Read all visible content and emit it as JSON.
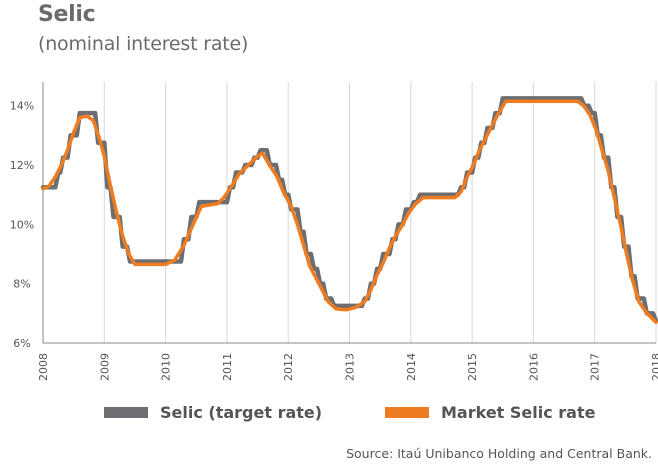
{
  "header": {
    "title": "Selic",
    "subtitle": "(nominal interest rate)"
  },
  "legend": {
    "items": [
      {
        "label": "Selic (target rate)",
        "color": "#6d6e71"
      },
      {
        "label": "Market Selic rate",
        "color": "#f07c22"
      }
    ]
  },
  "footer": {
    "source": "Source: Itaú Unibanco Holding and Central Bank."
  },
  "chart_data": {
    "type": "line",
    "title": "Selic",
    "subtitle": "(nominal interest rate)",
    "xlabel": "",
    "ylabel": "",
    "xlim": [
      2008,
      2018
    ],
    "ylim": [
      6,
      14.8
    ],
    "y_ticks": [
      6,
      8,
      10,
      12,
      14
    ],
    "y_tick_labels": [
      "6%",
      "8%",
      "10%",
      "12%",
      "14%"
    ],
    "x_ticks": [
      2008,
      2009,
      2010,
      2011,
      2012,
      2013,
      2014,
      2015,
      2016,
      2017,
      2018
    ],
    "x_tick_labels": [
      "2008",
      "2009",
      "2010",
      "2011",
      "2012",
      "2013",
      "2014",
      "2015",
      "2016",
      "2017",
      "2018"
    ],
    "grid": "vertical",
    "legend_position": "bottom",
    "series": [
      {
        "name": "Selic (target rate)",
        "color": "#6d6e71",
        "step": true,
        "points": [
          [
            2008.0,
            11.25
          ],
          [
            2008.25,
            11.75
          ],
          [
            2008.33,
            12.25
          ],
          [
            2008.45,
            13.0
          ],
          [
            2008.6,
            13.75
          ],
          [
            2008.9,
            12.75
          ],
          [
            2009.05,
            11.25
          ],
          [
            2009.15,
            10.25
          ],
          [
            2009.3,
            9.25
          ],
          [
            2009.42,
            8.75
          ],
          [
            2010.05,
            8.75
          ],
          [
            2010.3,
            9.5
          ],
          [
            2010.42,
            10.25
          ],
          [
            2010.55,
            10.75
          ],
          [
            2010.85,
            10.75
          ],
          [
            2011.05,
            11.25
          ],
          [
            2011.15,
            11.75
          ],
          [
            2011.3,
            12.0
          ],
          [
            2011.45,
            12.25
          ],
          [
            2011.55,
            12.5
          ],
          [
            2011.7,
            12.0
          ],
          [
            2011.85,
            11.5
          ],
          [
            2011.95,
            11.0
          ],
          [
            2012.05,
            10.5
          ],
          [
            2012.2,
            9.75
          ],
          [
            2012.3,
            9.0
          ],
          [
            2012.42,
            8.5
          ],
          [
            2012.52,
            8.0
          ],
          [
            2012.62,
            7.5
          ],
          [
            2012.75,
            7.25
          ],
          [
            2013.25,
            7.5
          ],
          [
            2013.35,
            8.0
          ],
          [
            2013.45,
            8.5
          ],
          [
            2013.55,
            9.0
          ],
          [
            2013.7,
            9.5
          ],
          [
            2013.8,
            10.0
          ],
          [
            2013.92,
            10.5
          ],
          [
            2014.05,
            10.75
          ],
          [
            2014.15,
            11.0
          ],
          [
            2014.7,
            11.0
          ],
          [
            2014.82,
            11.25
          ],
          [
            2014.92,
            11.75
          ],
          [
            2015.05,
            12.25
          ],
          [
            2015.15,
            12.75
          ],
          [
            2015.25,
            13.25
          ],
          [
            2015.38,
            13.75
          ],
          [
            2015.5,
            14.25
          ],
          [
            2016.75,
            14.25
          ],
          [
            2016.83,
            14.0
          ],
          [
            2016.95,
            13.75
          ],
          [
            2017.05,
            13.0
          ],
          [
            2017.15,
            12.25
          ],
          [
            2017.27,
            11.25
          ],
          [
            2017.37,
            10.25
          ],
          [
            2017.48,
            9.25
          ],
          [
            2017.6,
            8.25
          ],
          [
            2017.7,
            7.5
          ],
          [
            2017.85,
            7.0
          ],
          [
            2018.0,
            6.75
          ]
        ]
      },
      {
        "name": "Market Selic rate",
        "color": "#f07c22",
        "step": false,
        "points": [
          [
            2008.0,
            11.2
          ],
          [
            2008.1,
            11.3
          ],
          [
            2008.2,
            11.6
          ],
          [
            2008.3,
            12.0
          ],
          [
            2008.4,
            12.5
          ],
          [
            2008.5,
            13.1
          ],
          [
            2008.6,
            13.6
          ],
          [
            2008.72,
            13.65
          ],
          [
            2008.82,
            13.5
          ],
          [
            2008.92,
            12.9
          ],
          [
            2009.0,
            12.3
          ],
          [
            2009.1,
            11.3
          ],
          [
            2009.2,
            10.4
          ],
          [
            2009.3,
            9.6
          ],
          [
            2009.4,
            9.0
          ],
          [
            2009.5,
            8.65
          ],
          [
            2009.7,
            8.65
          ],
          [
            2010.0,
            8.65
          ],
          [
            2010.15,
            8.8
          ],
          [
            2010.3,
            9.3
          ],
          [
            2010.45,
            10.0
          ],
          [
            2010.58,
            10.6
          ],
          [
            2010.7,
            10.65
          ],
          [
            2010.85,
            10.7
          ],
          [
            2010.95,
            10.9
          ],
          [
            2011.08,
            11.3
          ],
          [
            2011.2,
            11.7
          ],
          [
            2011.35,
            12.0
          ],
          [
            2011.5,
            12.3
          ],
          [
            2011.58,
            12.4
          ],
          [
            2011.68,
            12.05
          ],
          [
            2011.82,
            11.6
          ],
          [
            2011.92,
            11.1
          ],
          [
            2012.05,
            10.6
          ],
          [
            2012.15,
            10.0
          ],
          [
            2012.25,
            9.3
          ],
          [
            2012.35,
            8.6
          ],
          [
            2012.45,
            8.2
          ],
          [
            2012.55,
            7.8
          ],
          [
            2012.65,
            7.4
          ],
          [
            2012.78,
            7.15
          ],
          [
            2012.95,
            7.12
          ],
          [
            2013.1,
            7.2
          ],
          [
            2013.25,
            7.4
          ],
          [
            2013.35,
            7.8
          ],
          [
            2013.45,
            8.3
          ],
          [
            2013.55,
            8.7
          ],
          [
            2013.65,
            9.2
          ],
          [
            2013.75,
            9.6
          ],
          [
            2013.87,
            10.0
          ],
          [
            2013.97,
            10.4
          ],
          [
            2014.08,
            10.7
          ],
          [
            2014.2,
            10.9
          ],
          [
            2014.5,
            10.9
          ],
          [
            2014.72,
            10.9
          ],
          [
            2014.82,
            11.1
          ],
          [
            2014.92,
            11.6
          ],
          [
            2015.02,
            12.0
          ],
          [
            2015.12,
            12.5
          ],
          [
            2015.22,
            12.9
          ],
          [
            2015.32,
            13.3
          ],
          [
            2015.42,
            13.7
          ],
          [
            2015.55,
            14.15
          ],
          [
            2016.0,
            14.15
          ],
          [
            2016.5,
            14.15
          ],
          [
            2016.72,
            14.15
          ],
          [
            2016.82,
            14.0
          ],
          [
            2016.92,
            13.7
          ],
          [
            2017.02,
            13.2
          ],
          [
            2017.12,
            12.5
          ],
          [
            2017.22,
            11.8
          ],
          [
            2017.32,
            10.9
          ],
          [
            2017.42,
            10.0
          ],
          [
            2017.52,
            9.0
          ],
          [
            2017.62,
            8.1
          ],
          [
            2017.72,
            7.4
          ],
          [
            2017.85,
            7.0
          ],
          [
            2018.0,
            6.7
          ]
        ]
      }
    ]
  }
}
